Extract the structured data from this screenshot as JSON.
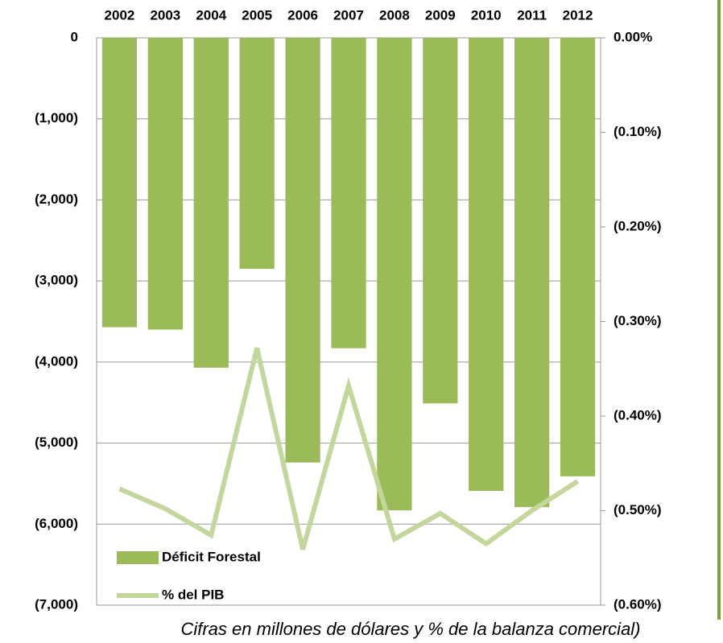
{
  "chart_data": {
    "type": "bar_line",
    "categories": [
      "2002",
      "2003",
      "2004",
      "2005",
      "2006",
      "2007",
      "2008",
      "2009",
      "2010",
      "2011",
      "2012"
    ],
    "series": [
      {
        "name": "Déficit Forestal",
        "type": "bar",
        "color": "#9bbb59",
        "values": [
          -3570,
          -3600,
          -4070,
          -2850,
          -5240,
          -3830,
          -5830,
          -4510,
          -5590,
          -5790,
          -5410
        ]
      },
      {
        "name": "% del PIB",
        "type": "line",
        "axis": "y2",
        "color": "#c3d69b",
        "values": [
          -0.477,
          -0.498,
          -0.526,
          -0.328,
          -0.541,
          -0.368,
          -0.53,
          -0.503,
          -0.535,
          -0.5,
          -0.469
        ]
      }
    ],
    "ylim": [
      0,
      -7000
    ],
    "yticks": [
      0,
      {
        "value": -1000,
        "label": "(1,000)"
      },
      {
        "value": -2000,
        "label": "(2,000)"
      },
      {
        "value": -3000,
        "label": "(3,000)"
      },
      {
        "value": -4000,
        "label": "(4,000)"
      },
      {
        "value": -5000,
        "label": "(5,000)"
      },
      {
        "value": -6000,
        "label": "(6,000)"
      },
      {
        "value": -7000,
        "label": "(7,000)"
      }
    ],
    "y2lim": [
      0,
      -0.6
    ],
    "y2ticks": [
      {
        "value": 0,
        "label": "0.00%"
      },
      {
        "value": -0.1,
        "label": "(0.10%)"
      },
      {
        "value": -0.2,
        "label": "(0.20%)"
      },
      {
        "value": -0.3,
        "label": "(0.30%)"
      },
      {
        "value": -0.4,
        "label": "(0.40%)"
      },
      {
        "value": -0.5,
        "label": "(0.50%)"
      },
      {
        "value": -0.6,
        "label": "(0.60%)"
      }
    ],
    "grid": true,
    "legend": "bottom-left",
    "caption": "Cifras en millones de dólares y % de la balanza comercial)"
  }
}
